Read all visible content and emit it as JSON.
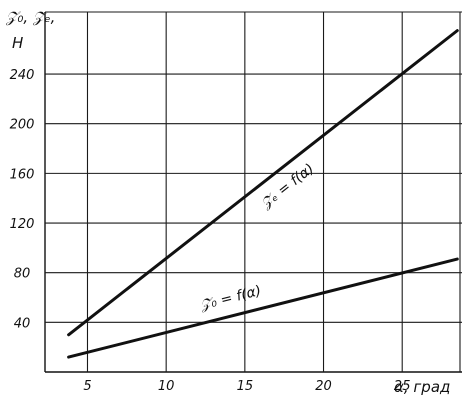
{
  "chart_data": {
    "type": "line",
    "ylabel": "𝒵₀, 𝒵ₑ,",
    "yunit": "Н",
    "xlabel": "α, град",
    "xticks": [
      5,
      10,
      15,
      20,
      25
    ],
    "yticks": [
      40,
      80,
      120,
      160,
      200,
      240
    ],
    "xlim": [
      2.3,
      28.8
    ],
    "ylim": [
      0,
      290
    ],
    "grid": true,
    "series": [
      {
        "name": "𝒵ₑ = f(α)",
        "x": [
          3.8,
          28.5
        ],
        "y": [
          30,
          275
        ]
      },
      {
        "name": "𝒵₀ = f(α)",
        "x": [
          3.8,
          28.5
        ],
        "y": [
          12,
          91
        ]
      }
    ]
  }
}
